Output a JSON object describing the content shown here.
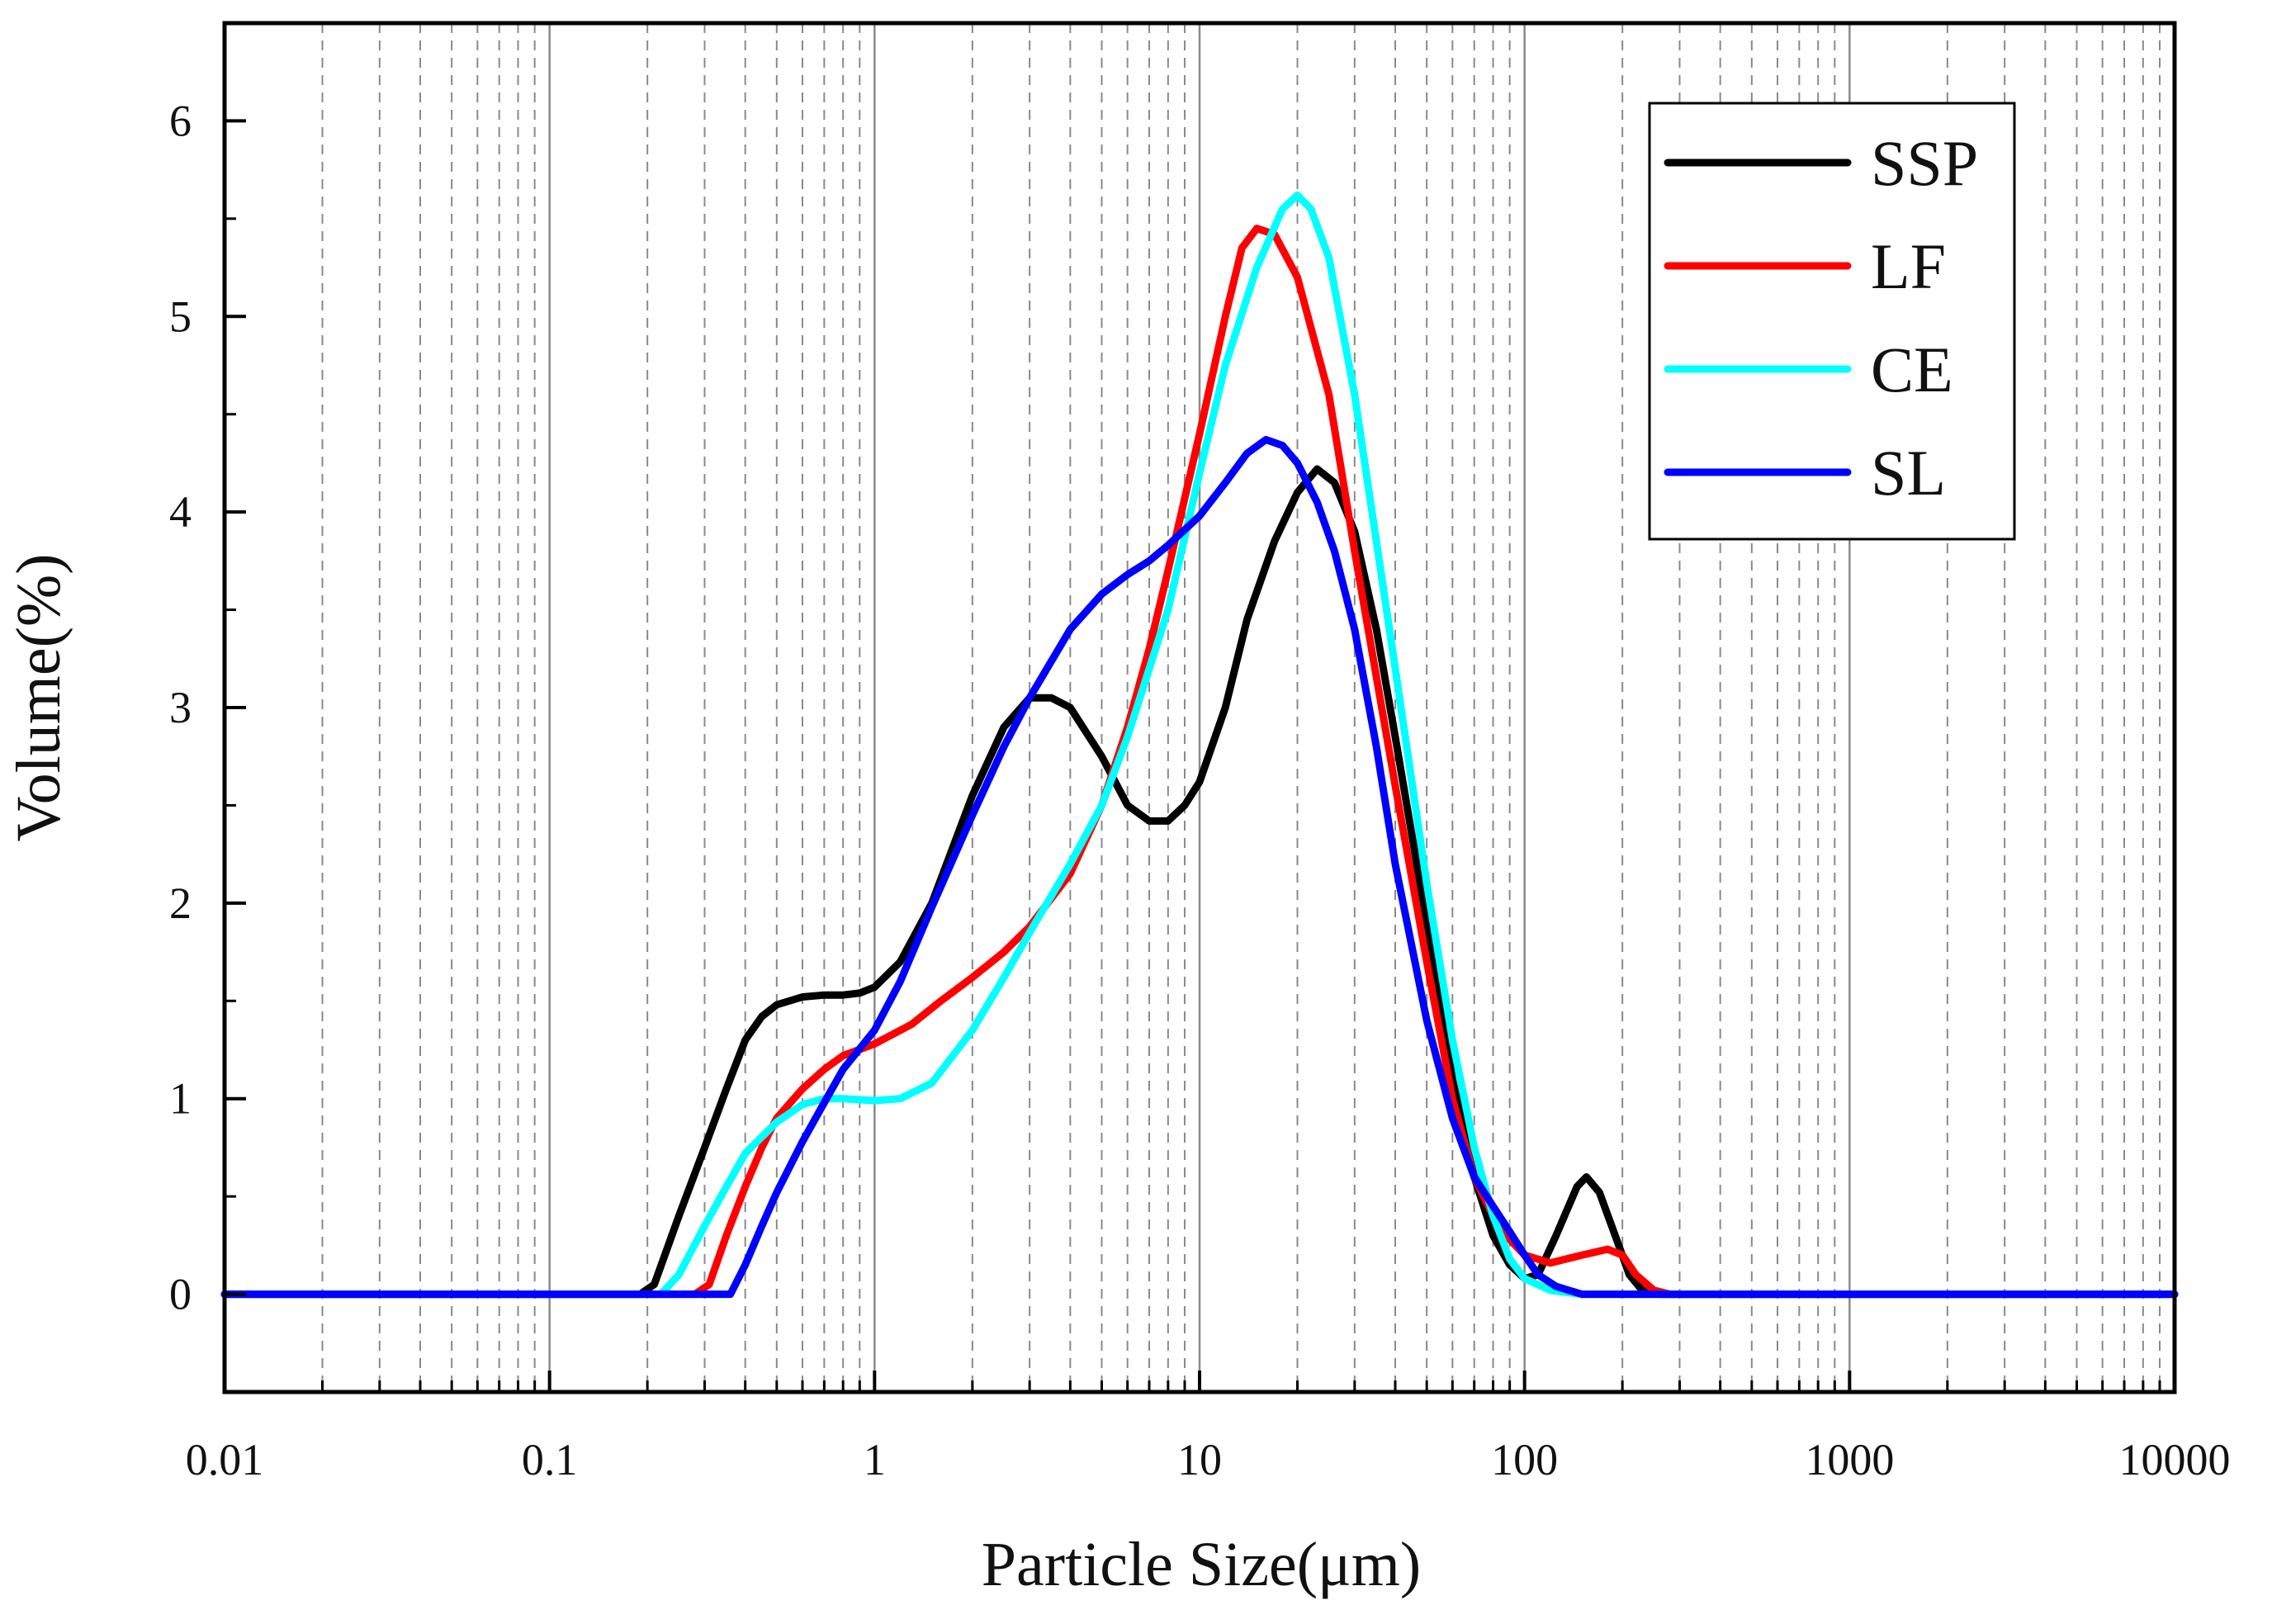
{
  "chart_data": {
    "type": "line",
    "xscale": "log",
    "xlabel": "Particle Size(μm)",
    "ylabel": "Volume(%)",
    "xlim": [
      0.01,
      10000
    ],
    "ylim": [
      -0.5,
      6.5
    ],
    "xticks": [
      0.01,
      0.1,
      1,
      10,
      100,
      1000,
      10000
    ],
    "xtick_labels": [
      "0.01",
      "0.1",
      "1",
      "10",
      "100",
      "1000",
      "10000"
    ],
    "yticks": [
      0,
      1,
      2,
      3,
      4,
      5,
      6
    ],
    "ytick_labels": [
      "0",
      "1",
      "2",
      "3",
      "4",
      "5",
      "6"
    ],
    "grid": "vertical major solid, minor dashed",
    "legend": {
      "position": "top-right",
      "entries": [
        "SSP",
        "LF",
        "CE",
        "SL"
      ]
    },
    "series": [
      {
        "name": "SSP",
        "color": "#000000",
        "points": [
          [
            0.01,
            0
          ],
          [
            0.19,
            0
          ],
          [
            0.21,
            0.05
          ],
          [
            0.25,
            0.4
          ],
          [
            0.3,
            0.75
          ],
          [
            0.35,
            1.05
          ],
          [
            0.4,
            1.3
          ],
          [
            0.45,
            1.42
          ],
          [
            0.5,
            1.48
          ],
          [
            0.6,
            1.52
          ],
          [
            0.7,
            1.53
          ],
          [
            0.8,
            1.53
          ],
          [
            0.9,
            1.54
          ],
          [
            1.0,
            1.57
          ],
          [
            1.2,
            1.7
          ],
          [
            1.5,
            2.0
          ],
          [
            2.0,
            2.55
          ],
          [
            2.5,
            2.9
          ],
          [
            3.0,
            3.05
          ],
          [
            3.5,
            3.05
          ],
          [
            4.0,
            3.0
          ],
          [
            5.0,
            2.75
          ],
          [
            6.0,
            2.5
          ],
          [
            7.0,
            2.42
          ],
          [
            8.0,
            2.42
          ],
          [
            9.0,
            2.5
          ],
          [
            10,
            2.62
          ],
          [
            12,
            3.0
          ],
          [
            14,
            3.45
          ],
          [
            17,
            3.85
          ],
          [
            20,
            4.1
          ],
          [
            23,
            4.22
          ],
          [
            26,
            4.15
          ],
          [
            30,
            3.9
          ],
          [
            35,
            3.4
          ],
          [
            40,
            2.85
          ],
          [
            50,
            1.9
          ],
          [
            60,
            1.1
          ],
          [
            70,
            0.6
          ],
          [
            80,
            0.3
          ],
          [
            90,
            0.15
          ],
          [
            100,
            0.08
          ],
          [
            110,
            0.1
          ],
          [
            125,
            0.3
          ],
          [
            145,
            0.55
          ],
          [
            155,
            0.6
          ],
          [
            170,
            0.52
          ],
          [
            190,
            0.3
          ],
          [
            210,
            0.1
          ],
          [
            230,
            0.02
          ],
          [
            260,
            0
          ],
          [
            10000,
            0
          ]
        ]
      },
      {
        "name": "LF",
        "color": "#ff0000",
        "points": [
          [
            0.01,
            0
          ],
          [
            0.28,
            0
          ],
          [
            0.31,
            0.05
          ],
          [
            0.35,
            0.3
          ],
          [
            0.4,
            0.55
          ],
          [
            0.45,
            0.75
          ],
          [
            0.5,
            0.9
          ],
          [
            0.6,
            1.05
          ],
          [
            0.7,
            1.15
          ],
          [
            0.8,
            1.22
          ],
          [
            1.0,
            1.28
          ],
          [
            1.3,
            1.38
          ],
          [
            1.6,
            1.5
          ],
          [
            2.0,
            1.62
          ],
          [
            2.5,
            1.75
          ],
          [
            3.0,
            1.88
          ],
          [
            4.0,
            2.15
          ],
          [
            5.0,
            2.5
          ],
          [
            6.0,
            2.9
          ],
          [
            7.0,
            3.3
          ],
          [
            8.0,
            3.7
          ],
          [
            10,
            4.4
          ],
          [
            12,
            5.0
          ],
          [
            13.5,
            5.35
          ],
          [
            15,
            5.45
          ],
          [
            17,
            5.42
          ],
          [
            20,
            5.2
          ],
          [
            25,
            4.6
          ],
          [
            30,
            3.8
          ],
          [
            40,
            2.6
          ],
          [
            50,
            1.7
          ],
          [
            60,
            1.0
          ],
          [
            70,
            0.6
          ],
          [
            80,
            0.4
          ],
          [
            90,
            0.28
          ],
          [
            100,
            0.2
          ],
          [
            120,
            0.16
          ],
          [
            150,
            0.2
          ],
          [
            180,
            0.23
          ],
          [
            200,
            0.2
          ],
          [
            220,
            0.1
          ],
          [
            250,
            0.02
          ],
          [
            280,
            0
          ],
          [
            10000,
            0
          ]
        ]
      },
      {
        "name": "CE",
        "color": "#00ffff",
        "points": [
          [
            0.01,
            0
          ],
          [
            0.22,
            0
          ],
          [
            0.25,
            0.1
          ],
          [
            0.3,
            0.35
          ],
          [
            0.35,
            0.55
          ],
          [
            0.4,
            0.72
          ],
          [
            0.5,
            0.88
          ],
          [
            0.6,
            0.97
          ],
          [
            0.7,
            1.0
          ],
          [
            0.8,
            1.0
          ],
          [
            1.0,
            0.99
          ],
          [
            1.2,
            1.0
          ],
          [
            1.5,
            1.08
          ],
          [
            2.0,
            1.35
          ],
          [
            2.5,
            1.62
          ],
          [
            3.0,
            1.85
          ],
          [
            4.0,
            2.2
          ],
          [
            5.0,
            2.5
          ],
          [
            6.0,
            2.85
          ],
          [
            8.0,
            3.5
          ],
          [
            10,
            4.2
          ],
          [
            12,
            4.75
          ],
          [
            15,
            5.25
          ],
          [
            18,
            5.55
          ],
          [
            20,
            5.62
          ],
          [
            22,
            5.55
          ],
          [
            25,
            5.3
          ],
          [
            30,
            4.6
          ],
          [
            40,
            3.2
          ],
          [
            50,
            2.1
          ],
          [
            60,
            1.3
          ],
          [
            70,
            0.75
          ],
          [
            80,
            0.4
          ],
          [
            90,
            0.18
          ],
          [
            100,
            0.08
          ],
          [
            120,
            0.02
          ],
          [
            150,
            0
          ],
          [
            10000,
            0
          ]
        ]
      },
      {
        "name": "SL",
        "color": "#0000ff",
        "points": [
          [
            0.01,
            0
          ],
          [
            0.36,
            0
          ],
          [
            0.4,
            0.15
          ],
          [
            0.45,
            0.35
          ],
          [
            0.5,
            0.52
          ],
          [
            0.6,
            0.78
          ],
          [
            0.7,
            0.98
          ],
          [
            0.8,
            1.15
          ],
          [
            1.0,
            1.35
          ],
          [
            1.2,
            1.6
          ],
          [
            1.5,
            1.98
          ],
          [
            2.0,
            2.45
          ],
          [
            2.5,
            2.8
          ],
          [
            3.0,
            3.05
          ],
          [
            4.0,
            3.4
          ],
          [
            5.0,
            3.58
          ],
          [
            6.0,
            3.68
          ],
          [
            7.0,
            3.75
          ],
          [
            8.0,
            3.83
          ],
          [
            10,
            3.98
          ],
          [
            12,
            4.15
          ],
          [
            14,
            4.3
          ],
          [
            16,
            4.37
          ],
          [
            18,
            4.34
          ],
          [
            20,
            4.25
          ],
          [
            23,
            4.05
          ],
          [
            26,
            3.8
          ],
          [
            30,
            3.4
          ],
          [
            35,
            2.8
          ],
          [
            40,
            2.2
          ],
          [
            50,
            1.4
          ],
          [
            60,
            0.9
          ],
          [
            70,
            0.6
          ],
          [
            80,
            0.45
          ],
          [
            90,
            0.32
          ],
          [
            100,
            0.2
          ],
          [
            110,
            0.1
          ],
          [
            125,
            0.04
          ],
          [
            150,
            0
          ],
          [
            10000,
            0
          ]
        ]
      }
    ]
  }
}
